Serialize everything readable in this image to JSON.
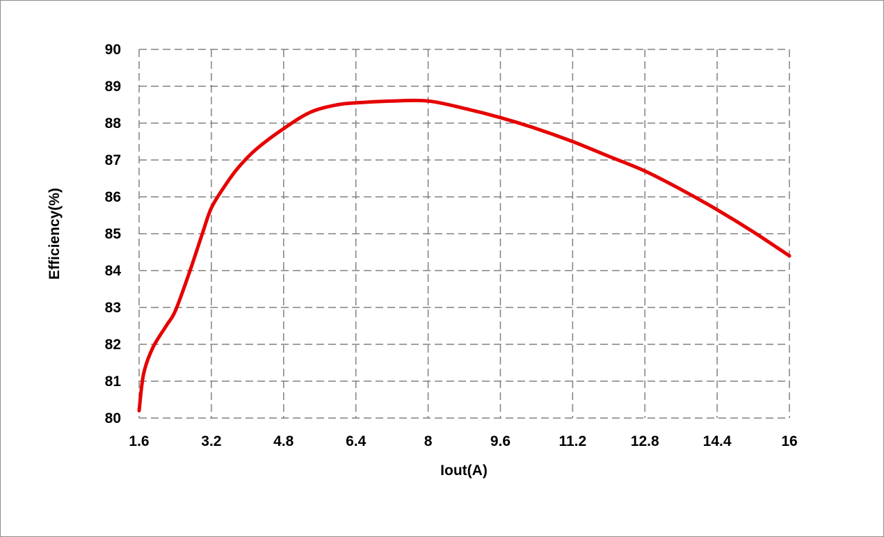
{
  "chart_data": {
    "type": "line",
    "title": "",
    "xlabel": "Iout(A)",
    "ylabel": "Efficiency(%)",
    "xlim": [
      1.6,
      16
    ],
    "ylim": [
      80,
      90
    ],
    "x_ticks": [
      "1.6",
      "3.2",
      "4.8",
      "6.4",
      "8",
      "9.6",
      "11.2",
      "12.8",
      "14.4",
      "16"
    ],
    "y_ticks": [
      "80",
      "81",
      "82",
      "83",
      "84",
      "85",
      "86",
      "87",
      "88",
      "89",
      "90"
    ],
    "grid": "dashed",
    "legend": "none",
    "series": [
      {
        "color": "#e60000",
        "x": [
          1.6,
          1.7,
          1.9,
          2.2,
          2.4,
          2.7,
          3.0,
          3.2,
          3.5,
          3.8,
          4.2,
          4.8,
          5.4,
          6.0,
          6.4,
          7.2,
          8.0,
          8.8,
          9.6,
          10.4,
          11.2,
          12.0,
          12.8,
          13.6,
          14.4,
          15.2,
          16.0
        ],
        "y": [
          80.2,
          81.2,
          81.9,
          82.5,
          82.9,
          83.9,
          85.0,
          85.7,
          86.3,
          86.8,
          87.3,
          87.85,
          88.3,
          88.5,
          88.55,
          88.6,
          88.6,
          88.4,
          88.15,
          87.85,
          87.5,
          87.1,
          86.7,
          86.2,
          85.65,
          85.05,
          84.4
        ]
      }
    ]
  }
}
